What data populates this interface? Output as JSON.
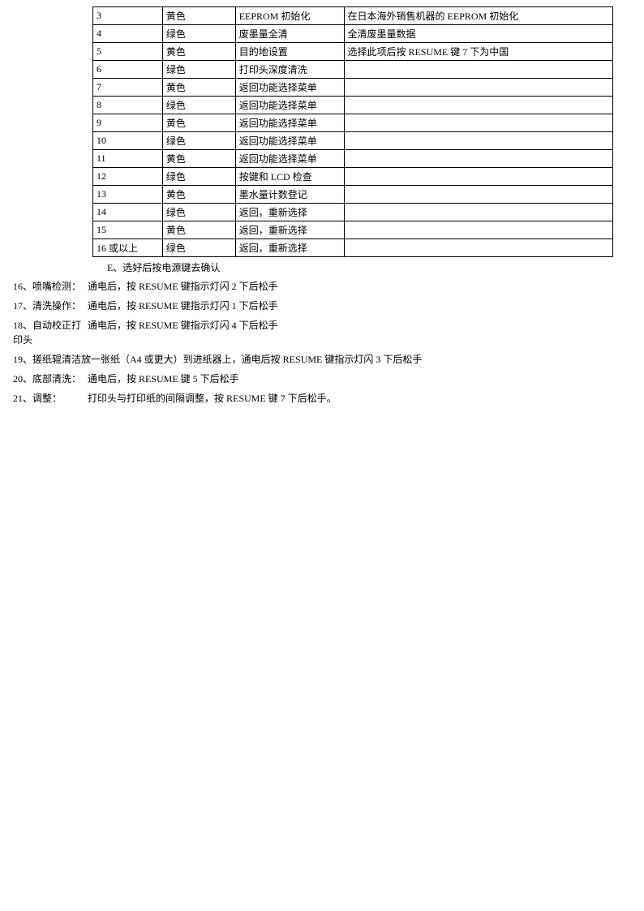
{
  "table": {
    "rows": [
      {
        "c1": "3",
        "c2": "黄色",
        "c3": "EEPROM 初始化",
        "c4": "在日本海外销售机器的 EEPROM 初始化"
      },
      {
        "c1": "4",
        "c2": "绿色",
        "c3": "废墨量全清",
        "c4": "全清废墨量数据"
      },
      {
        "c1": "5",
        "c2": "黄色",
        "c3": "目的地设置",
        "c4": "选择此项后按 RESUME 键 7 下为中国"
      },
      {
        "c1": "6",
        "c2": "绿色",
        "c3": "打印头深度清洗",
        "c4": ""
      },
      {
        "c1": "7",
        "c2": "黄色",
        "c3": "返回功能选择菜单",
        "c4": ""
      },
      {
        "c1": "8",
        "c2": "绿色",
        "c3": "返回功能选择菜单",
        "c4": ""
      },
      {
        "c1": "9",
        "c2": "黄色",
        "c3": "返回功能选择菜单",
        "c4": ""
      },
      {
        "c1": "10",
        "c2": "绿色",
        "c3": "返回功能选择菜单",
        "c4": ""
      },
      {
        "c1": "11",
        "c2": "黄色",
        "c3": "返回功能选择菜单",
        "c4": ""
      },
      {
        "c1": "12",
        "c2": "绿色",
        "c3": "按键和 LCD 检查",
        "c4": ""
      },
      {
        "c1": "13",
        "c2": "黄色",
        "c3": "墨水量计数登记",
        "c4": ""
      },
      {
        "c1": "14",
        "c2": "绿色",
        "c3": "返回，重新选择",
        "c4": ""
      },
      {
        "c1": "15",
        "c2": "黄色",
        "c3": "返回，重新选择",
        "c4": ""
      },
      {
        "c1": "16 或以上",
        "c2": "绿色",
        "c3": "返回，重新选择",
        "c4": ""
      }
    ]
  },
  "note_e": "E、选好后按电源键去确认",
  "instructions": [
    {
      "label": "16、喷嘴检测：",
      "text": "通电后，按 RESUME 键指示灯闪 2 下后松手"
    },
    {
      "label": "17、清洗操作：",
      "text": "通电后，按 RESUME 键指示灯闪 1 下后松手"
    },
    {
      "label": "18、自动校正打印头",
      "text": "通电后，按 RESUME 键指示灯闪 4 下后松手"
    },
    {
      "label": "19、搓纸辊清洁",
      "text": "放一张纸（A4 或更大）到进纸器上，通电后按 RESUME 键指示灯闪 3 下后松手"
    },
    {
      "label": "20、底部清洗：",
      "text": "通电后，按 RESUME 键 5 下后松手"
    },
    {
      "label": "21、调整：",
      "text": "打印头与打印纸的间隔调整，按 RESUME 键 7 下后松手。"
    }
  ]
}
